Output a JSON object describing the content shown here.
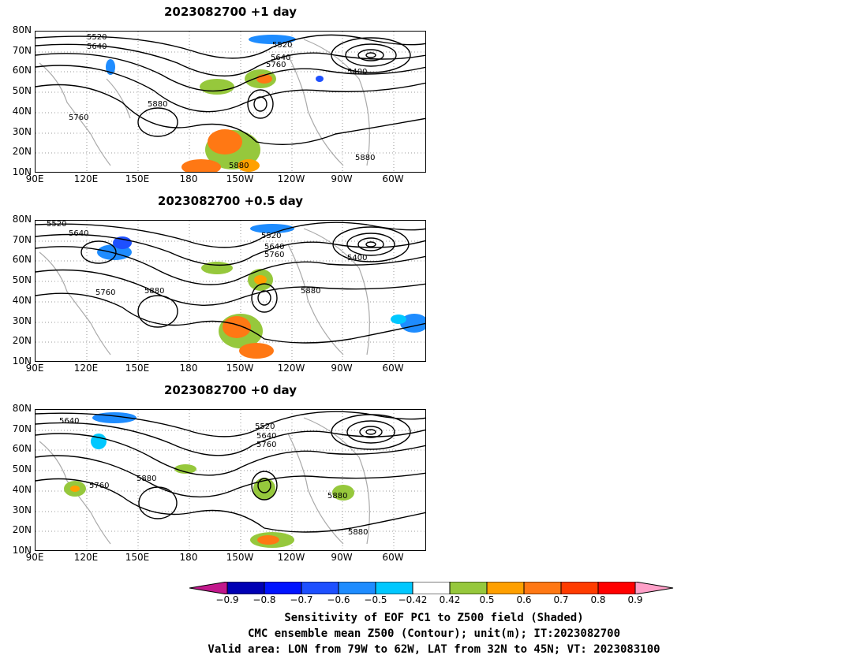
{
  "panels": [
    {
      "title": "2023082700  +1 day",
      "labels": [
        "5520",
        "5640",
        "5520",
        "5640",
        "5760",
        "5400",
        "5880",
        "5760",
        "5880",
        "5880"
      ]
    },
    {
      "title": "2023082700  +0.5 day",
      "labels": [
        "5520",
        "5640",
        "5520",
        "5640",
        "5760",
        "5400",
        "5760",
        "5880",
        "5880"
      ]
    },
    {
      "title": "2023082700  +0 day",
      "labels": [
        "5640",
        "5520",
        "5640",
        "5760",
        "5880",
        "5760",
        "5880",
        "5880"
      ]
    }
  ],
  "lat_labels": [
    "80N",
    "70N",
    "60N",
    "50N",
    "40N",
    "30N",
    "20N",
    "10N"
  ],
  "lon_labels": [
    "90E",
    "120E",
    "150E",
    "180",
    "150W",
    "120W",
    "90W",
    "60W"
  ],
  "colorbar": {
    "ticks": [
      "−0.9",
      "−0.8",
      "−0.7",
      "−0.6",
      "−0.5",
      "−0.42",
      "0.42",
      "0.5",
      "0.6",
      "0.7",
      "0.8",
      "0.9"
    ],
    "colors": [
      "#c2188c",
      "#0000b4",
      "#0014ff",
      "#1e50ff",
      "#1e8cff",
      "#00c8ff",
      "#ffffff",
      "#96c83c",
      "#ffa000",
      "#ff7814",
      "#ff3c00",
      "#ff0000",
      "#ffa0c8"
    ]
  },
  "caption": {
    "line1": "Sensitivity of EOF PC1 to Z500 field (Shaded)",
    "line2": "CMC ensemble mean Z500 (Contour); unit(m); IT:2023082700",
    "line3": "Valid area: LON from 79W to 62W, LAT from 32N to 45N; VT: 2023083100"
  }
}
